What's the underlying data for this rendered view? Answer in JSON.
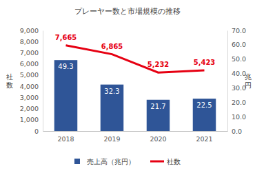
{
  "chart_data": {
    "type": "bar",
    "title": "プレーヤー数と市場規模の推移",
    "y_label": "社数",
    "y2_label": "兆円",
    "categories": [
      "2018",
      "2019",
      "2020",
      "2021"
    ],
    "series": [
      {
        "name": "売上高（兆円）",
        "type": "bar",
        "axis": "y2",
        "color": "#2f5597",
        "values": [
          49.3,
          32.3,
          21.7,
          22.5
        ]
      },
      {
        "name": "社数",
        "type": "line",
        "color": "#e60012",
        "values": [
          7665,
          6865,
          5232,
          5423
        ],
        "value_labels": [
          "7,665",
          "6,865",
          "5,232",
          "5,423"
        ]
      }
    ],
    "ylim": [
      0,
      9000
    ],
    "yticks": [
      0,
      {
        "value": 1000,
        "label": "1,000"
      },
      {
        "value": 2000,
        "label": "2,000"
      },
      {
        "value": 3000,
        "label": "3,000"
      },
      {
        "value": 4000,
        "label": "4,000"
      },
      {
        "value": 5000,
        "label": "5,000"
      },
      {
        "value": 6000,
        "label": "6,000"
      },
      {
        "value": 7000,
        "label": "7,000"
      },
      {
        "value": 8000,
        "label": "8,000"
      },
      {
        "value": 9000,
        "label": "9,000"
      }
    ],
    "y2lim": [
      0,
      70
    ],
    "y2ticks": [
      {
        "value": 0,
        "label": "0.0"
      },
      {
        "value": 10,
        "label": "10.0"
      },
      {
        "value": 20,
        "label": "20.0"
      },
      {
        "value": 30,
        "label": "30.0"
      },
      {
        "value": 40,
        "label": "40.0"
      },
      {
        "value": 50,
        "label": "50.0"
      },
      {
        "value": 60,
        "label": "60.0"
      },
      {
        "value": 70,
        "label": "70.0"
      }
    ],
    "grid": false,
    "legend": "bottom",
    "data_labels": true
  }
}
